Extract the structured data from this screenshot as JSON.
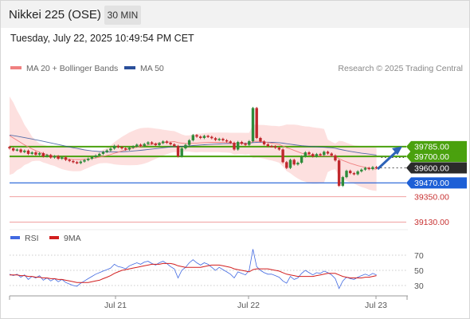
{
  "header": {
    "title": "Nikkei 225 (OSE)",
    "interval": "30 MIN"
  },
  "timestamp": "Tuesday, July 22, 2025 10:49:54 PM CET",
  "legend": {
    "bollinger_label": "MA 20 + Bollinger Bands",
    "ma50_label": "MA 50",
    "credit": "Research © 2025 Trading Central"
  },
  "rsi_legend": {
    "rsi_label": "RSI",
    "ma9_label": "9MA"
  },
  "colors": {
    "candle_up": "#2e8b3a",
    "candle_down": "#c0282d",
    "ma20": "#f08080",
    "ma50": "#2a4f9a",
    "bands_fill": "#fde0df",
    "resistance": "#4aa10e",
    "support": "#1d5fd6",
    "target": "#f0a0a0",
    "current": "#2b2b2b",
    "rsi": "#4169e1",
    "rsi_ma": "#d21f1f"
  },
  "chart_data": {
    "type": "candlestick",
    "title": "Nikkei 225 (OSE)",
    "interval": "30 MIN",
    "x_ticks": [
      "Jul 21",
      "Jul 22",
      "Jul 23"
    ],
    "ylim": [
      39050,
      40400
    ],
    "levels": [
      {
        "value": 39785,
        "label": "39785.00",
        "kind": "resistance"
      },
      {
        "value": 39700,
        "label": "39700.00",
        "kind": "resistance"
      },
      {
        "value": 39600,
        "label": "39600.00",
        "kind": "current"
      },
      {
        "value": 39470,
        "label": "39470.00",
        "kind": "support"
      },
      {
        "value": 39350,
        "label": "39350.00",
        "kind": "target"
      },
      {
        "value": 39130,
        "label": "39130.00",
        "kind": "target"
      }
    ],
    "candles_close": [
      39770,
      39752,
      39760,
      39738,
      39750,
      39722,
      39735,
      39715,
      39728,
      39700,
      39712,
      39690,
      39702,
      39680,
      39692,
      39670,
      39660,
      39650,
      39642,
      39655,
      39668,
      39680,
      39694,
      39708,
      39722,
      39738,
      39752,
      39768,
      39792,
      39780,
      39770,
      39760,
      39775,
      39786,
      39802,
      39790,
      39808,
      39822,
      39810,
      39798,
      39815,
      39830,
      39818,
      39805,
      39790,
      39700,
      39770,
      39800,
      39840,
      39885,
      39872,
      39860,
      39878,
      39870,
      39858,
      39843,
      39852,
      39840,
      39830,
      39818,
      39760,
      39825,
      39810,
      39800,
      39832,
      40120,
      39860,
      39830,
      39805,
      39790,
      39788,
      39775,
      39760,
      39650,
      39600,
      39670,
      39630,
      39645,
      39700,
      39735,
      39720,
      39700,
      39720,
      39712,
      39740,
      39725,
      39708,
      39665,
      39445,
      39520,
      39575,
      39555,
      39545,
      39570,
      39585,
      39600,
      39590,
      39607,
      39600
    ],
    "ma20": [
      39880,
      39860,
      39840,
      39820,
      39800,
      39782,
      39765,
      39750,
      39737,
      39725,
      39715,
      39705,
      39697,
      39690,
      39684,
      39680,
      39676,
      39674,
      39673,
      39673,
      39675,
      39678,
      39682,
      39687,
      39693,
      39700,
      39708,
      39717,
      39727,
      39737,
      39747,
      39756,
      39765,
      39773,
      39780,
      39787,
      39793,
      39799,
      39805,
      39810,
      39815,
      39819,
      39823,
      39826,
      39829,
      39820,
      39815,
      39812,
      39812,
      39814,
      39816,
      39818,
      39820,
      39821,
      39822,
      39822,
      39822,
      39821,
      39820,
      39818,
      39810,
      39812,
      39812,
      39810,
      39812,
      39830,
      39832,
      39830,
      39826,
      39820,
      39815,
      39810,
      39803,
      39790,
      39775,
      39765,
      39752,
      39740,
      39728,
      39720,
      39713,
      39708,
      39706,
      39705,
      39705,
      39705,
      39704,
      39700,
      39680,
      39665,
      39653,
      39640,
      39630,
      39620,
      39612,
      39605,
      39598,
      39593,
      39588
    ],
    "ma50": [
      39885,
      39880,
      39875,
      39869,
      39863,
      39857,
      39851,
      39844,
      39838,
      39831,
      39824,
      39817,
      39810,
      39803,
      39796,
      39789,
      39782,
      39775,
      39769,
      39763,
      39757,
      39752,
      39748,
      39745,
      39742,
      39740,
      39739,
      39738,
      39738,
      39739,
      39740,
      39742,
      39744,
      39747,
      39750,
      39753,
      39756,
      39760,
      39764,
      39767,
      39771,
      39775,
      39778,
      39782,
      39785,
      39786,
      39787,
      39789,
      39791,
      39794,
      39796,
      39799,
      39801,
      39803,
      39805,
      39807,
      39808,
      39810,
      39811,
      39812,
      39812,
      39813,
      39814,
      39814,
      39815,
      39820,
      39822,
      39823,
      39823,
      39823,
      39822,
      39821,
      39819,
      39815,
      39810,
      39806,
      39801,
      39797,
      39793,
      39790,
      39788,
      39785,
      39783,
      39781,
      39779,
      39777,
      39775,
      39771,
      39763,
      39756,
      39750,
      39744,
      39738,
      39733,
      39728,
      39724,
      39720,
      39716,
      39712
    ],
    "rsi": {
      "ylim": [
        20,
        80
      ],
      "ticks": [
        70,
        50,
        30
      ],
      "rsi": [
        45,
        43,
        45,
        41,
        44,
        38,
        42,
        40,
        43,
        37,
        40,
        36,
        39,
        35,
        38,
        34,
        32,
        30,
        29,
        33,
        36,
        39,
        42,
        45,
        47,
        49,
        51,
        53,
        58,
        55,
        54,
        52,
        56,
        58,
        60,
        58,
        61,
        62,
        59,
        57,
        60,
        62,
        59,
        55,
        52,
        40,
        50,
        54,
        60,
        64,
        60,
        57,
        60,
        58,
        54,
        50,
        54,
        51,
        48,
        45,
        40,
        48,
        46,
        44,
        50,
        78,
        55,
        50,
        47,
        45,
        45,
        43,
        41,
        36,
        33,
        42,
        38,
        40,
        46,
        50,
        47,
        44,
        47,
        46,
        49,
        47,
        44,
        39,
        26,
        36,
        41,
        39,
        38,
        41,
        43,
        45,
        43,
        46,
        44
      ],
      "ma9": [
        44,
        44,
        44,
        43,
        43,
        42,
        42,
        41,
        41,
        40,
        40,
        39,
        39,
        38,
        38,
        37,
        36,
        35,
        34,
        34,
        34,
        34,
        35,
        36,
        37,
        39,
        41,
        43,
        46,
        48,
        50,
        51,
        52,
        53,
        54,
        55,
        56,
        57,
        58,
        58,
        58,
        59,
        59,
        59,
        58,
        56,
        55,
        54,
        54,
        54,
        54,
        54,
        55,
        56,
        57,
        57,
        57,
        56,
        55,
        54,
        52,
        51,
        50,
        49,
        48,
        51,
        52,
        52,
        52,
        52,
        51,
        50,
        49,
        47,
        45,
        44,
        43,
        42,
        42,
        42,
        42,
        42,
        43,
        44,
        45,
        46,
        46,
        46,
        44,
        42,
        41,
        40,
        40,
        40,
        40,
        41,
        41,
        42,
        43
      ]
    }
  }
}
